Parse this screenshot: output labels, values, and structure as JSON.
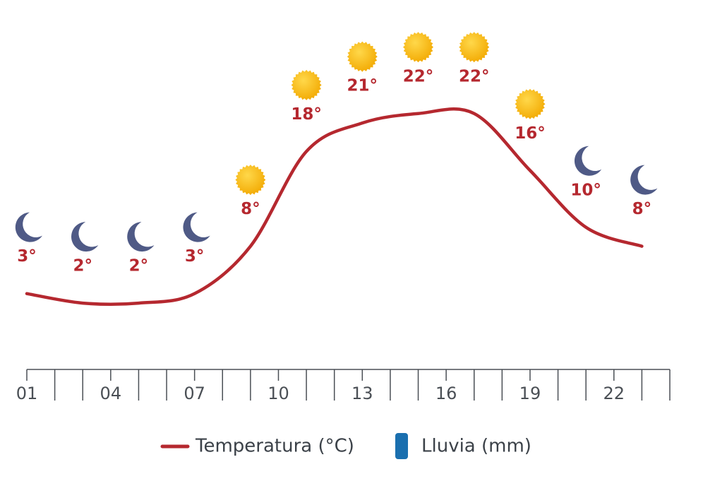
{
  "chart_data": {
    "type": "line",
    "x": [
      1,
      3,
      5,
      7,
      9,
      11,
      13,
      15,
      17,
      19,
      21,
      23
    ],
    "series": [
      {
        "name": "Temperatura (°C)",
        "color": "#b5282f",
        "values": [
          3,
          2,
          2,
          3,
          8,
          18,
          21,
          22,
          22,
          16,
          10,
          8
        ],
        "value_labels": [
          "3°",
          "2°",
          "2°",
          "3°",
          "8°",
          "18°",
          "21°",
          "22°",
          "22°",
          "16°",
          "10°",
          "8°"
        ],
        "icons": [
          "moon",
          "moon",
          "moon",
          "moon",
          "sun",
          "sun",
          "sun",
          "sun",
          "sun",
          "sun",
          "moon",
          "moon"
        ]
      }
    ],
    "legend": [
      {
        "name": "Temperatura (°C)",
        "color": "#b5282f",
        "marker": "line"
      },
      {
        "name": "Lluvia (mm)",
        "color": "#1a6faf",
        "marker": "bar"
      }
    ],
    "xlim": [
      1,
      24
    ],
    "xticks": [
      {
        "value": 1,
        "label": "01"
      },
      {
        "value": 4,
        "label": "04"
      },
      {
        "value": 7,
        "label": "07"
      },
      {
        "value": 10,
        "label": "10"
      },
      {
        "value": 13,
        "label": "13"
      },
      {
        "value": 16,
        "label": "16"
      },
      {
        "value": 19,
        "label": "19"
      },
      {
        "value": 22,
        "label": "22"
      }
    ],
    "xminorticks": [
      2,
      3,
      5,
      6,
      8,
      9,
      11,
      12,
      14,
      15,
      17,
      18,
      20,
      21,
      23,
      24
    ],
    "ylim": [
      -5,
      31
    ]
  }
}
